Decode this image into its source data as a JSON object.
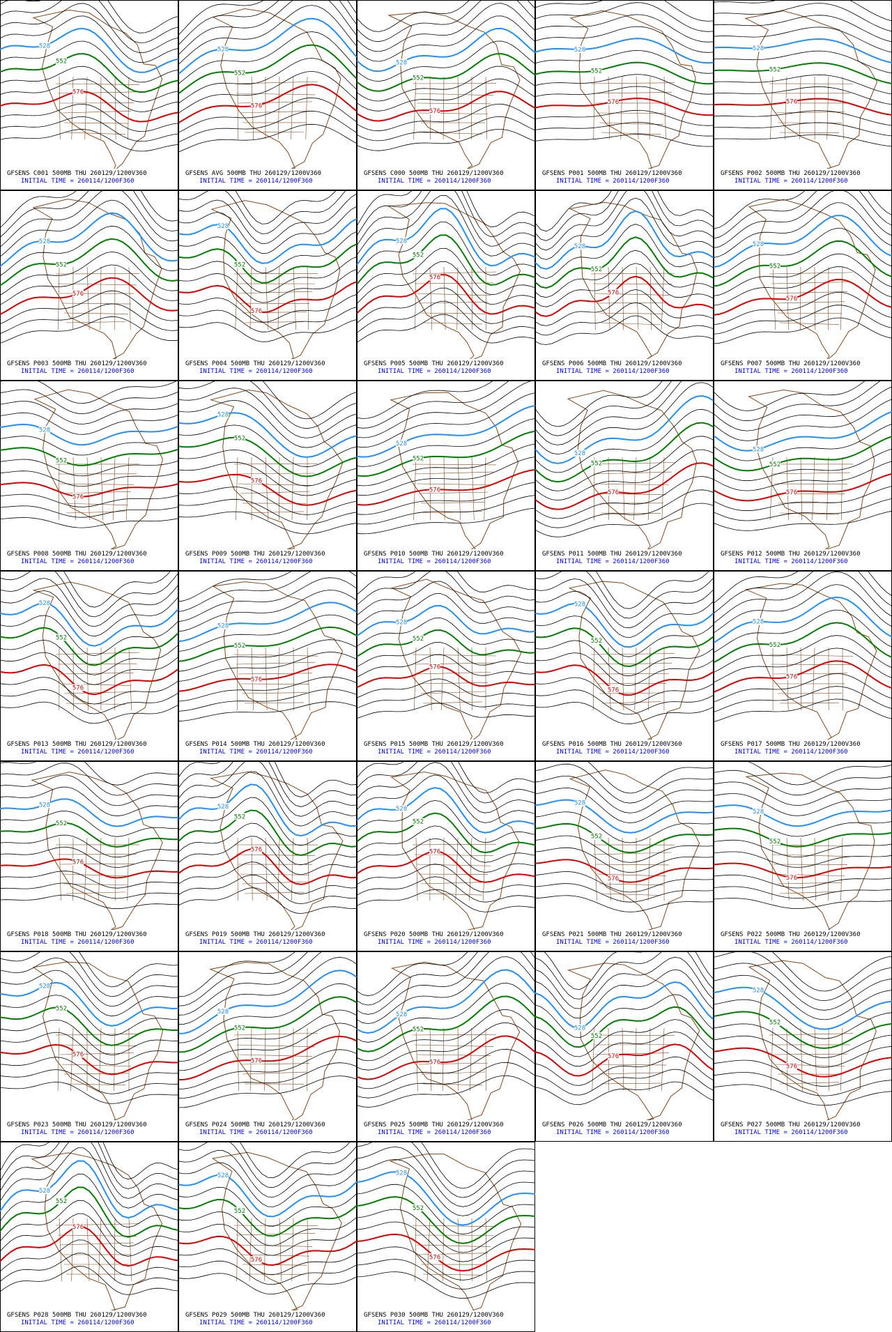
{
  "panels": [
    {
      "title": "GFSENS C001 500MB THU 260129/1200V360",
      "init": "INITIAL TIME = 260114/1200F360",
      "contour_labels": [
        "528",
        "552",
        "576"
      ]
    },
    {
      "title": "GFSENS AVG 500MB THU 260129/1200V360",
      "init": "INITIAL TIME = 260114/1200F360",
      "contour_labels": [
        "528",
        "552",
        "576"
      ]
    },
    {
      "title": "GFSENS C000 500MB THU 260129/1200V360",
      "init": "INITIAL TIME = 260114/1200F360",
      "contour_labels": [
        "528",
        "552",
        "576"
      ]
    },
    {
      "title": "GFSENS P001 500MB THU 260129/1200V360",
      "init": "INITIAL TIME = 260114/1200F360",
      "contour_labels": [
        "528",
        "552",
        "576"
      ]
    },
    {
      "title": "GFSENS P002 500MB THU 260129/1200V360",
      "init": "INITIAL TIME = 260114/1200F360",
      "contour_labels": [
        "528",
        "552",
        "576"
      ]
    },
    {
      "title": "GFSENS P003 500MB THU 260129/1200V360",
      "init": "INITIAL TIME = 260114/1200F360",
      "contour_labels": [
        "528",
        "552",
        "576"
      ]
    },
    {
      "title": "GFSENS P004 500MB THU 260129/1200V360",
      "init": "INITIAL TIME = 260114/1200F360",
      "contour_labels": [
        "528",
        "552",
        "576"
      ]
    },
    {
      "title": "GFSENS P005 500MB THU 260129/1200V360",
      "init": "INITIAL TIME = 260114/1200F360",
      "contour_labels": [
        "528",
        "552",
        "576"
      ]
    },
    {
      "title": "GFSENS P006 500MB THU 260129/1200V360",
      "init": "INITIAL TIME = 260114/1200F360",
      "contour_labels": [
        "528",
        "552",
        "576"
      ]
    },
    {
      "title": "GFSENS P007 500MB THU 260129/1200V360",
      "init": "INITIAL TIME = 260114/1200F360",
      "contour_labels": [
        "528",
        "552",
        "576"
      ]
    },
    {
      "title": "GFSENS P008 500MB THU 260129/1200V360",
      "init": "INITIAL TIME = 260114/1200F360",
      "contour_labels": [
        "528",
        "552",
        "576"
      ]
    },
    {
      "title": "GFSENS P009 500MB THU 260129/1200V360",
      "init": "INITIAL TIME = 260114/1200F360",
      "contour_labels": [
        "528",
        "552",
        "576"
      ]
    },
    {
      "title": "GFSENS P010 500MB THU 260129/1200V360",
      "init": "INITIAL TIME = 260114/1200F360",
      "contour_labels": [
        "528",
        "552",
        "576"
      ]
    },
    {
      "title": "GFSENS P011 500MB THU 260129/1200V360",
      "init": "INITIAL TIME = 260114/1200F360",
      "contour_labels": [
        "528",
        "552",
        "576"
      ]
    },
    {
      "title": "GFSENS P012 500MB THU 260129/1200V360",
      "init": "INITIAL TIME = 260114/1200F360",
      "contour_labels": [
        "528",
        "552",
        "576"
      ]
    },
    {
      "title": "GFSENS P013 500MB THU 260129/1200V360",
      "init": "INITIAL TIME = 260114/1200F360",
      "contour_labels": [
        "528",
        "552",
        "576"
      ]
    },
    {
      "title": "GFSENS P014 500MB THU 260129/1200V360",
      "init": "INITIAL TIME = 260114/1200F360",
      "contour_labels": [
        "528",
        "552",
        "576"
      ]
    },
    {
      "title": "GFSENS P015 500MB THU 260129/1200V360",
      "init": "INITIAL TIME = 260114/1200F360",
      "contour_labels": [
        "528",
        "552",
        "576"
      ]
    },
    {
      "title": "GFSENS P016 500MB THU 260129/1200V360",
      "init": "INITIAL TIME = 260114/1200F360",
      "contour_labels": [
        "528",
        "552",
        "576"
      ]
    },
    {
      "title": "GFSENS P017 500MB THU 260129/1200V360",
      "init": "INITIAL TIME = 260114/1200F360",
      "contour_labels": [
        "528",
        "552",
        "576"
      ]
    },
    {
      "title": "GFSENS P018 500MB THU 260129/1200V360",
      "init": "INITIAL TIME = 260114/1200F360",
      "contour_labels": [
        "528",
        "552",
        "576"
      ]
    },
    {
      "title": "GFSENS P019 500MB THU 260129/1200V360",
      "init": "INITIAL TIME = 260114/1200F360",
      "contour_labels": [
        "528",
        "552",
        "576"
      ]
    },
    {
      "title": "GFSENS P020 500MB THU 260129/1200V360",
      "init": "INITIAL TIME = 260114/1200F360",
      "contour_labels": [
        "528",
        "552",
        "576"
      ]
    },
    {
      "title": "GFSENS P021 500MB THU 260129/1200V360",
      "init": "INITIAL TIME = 260114/1200F360",
      "contour_labels": [
        "528",
        "552",
        "576"
      ]
    },
    {
      "title": "GFSENS P022 500MB THU 260129/1200V360",
      "init": "INITIAL TIME = 260114/1200F360",
      "contour_labels": [
        "528",
        "552",
        "576"
      ]
    },
    {
      "title": "GFSENS P023 500MB THU 260129/1200V360",
      "init": "INITIAL TIME = 260114/1200F360",
      "contour_labels": [
        "528",
        "552",
        "576"
      ]
    },
    {
      "title": "GFSENS P024 500MB THU 260129/1200V360",
      "init": "INITIAL TIME = 260114/1200F360",
      "contour_labels": [
        "528",
        "552",
        "576"
      ]
    },
    {
      "title": "GFSENS P025 500MB THU 260129/1200V360",
      "init": "INITIAL TIME = 260114/1200F360",
      "contour_labels": [
        "528",
        "552",
        "576"
      ]
    },
    {
      "title": "GFSENS P026 500MB THU 260129/1200V360",
      "init": "INITIAL TIME = 260114/1200F360",
      "contour_labels": [
        "528",
        "552",
        "576"
      ]
    },
    {
      "title": "GFSENS P027 500MB THU 260129/1200V360",
      "init": "INITIAL TIME = 260114/1200F360",
      "contour_labels": [
        "528",
        "552",
        "576"
      ]
    },
    {
      "title": "GFSENS P028 500MB THU 260129/1200V360",
      "init": "INITIAL TIME = 260114/1200F360",
      "contour_labels": [
        "528",
        "552",
        "576"
      ]
    },
    {
      "title": "GFSENS P029 500MB THU 260129/1200V360",
      "init": "INITIAL TIME = 260114/1200F360",
      "contour_labels": [
        "528",
        "552",
        "576"
      ]
    },
    {
      "title": "GFSENS P030 500MB THU 260129/1200V360",
      "init": "INITIAL TIME = 260114/1200F360",
      "contour_labels": [
        "528",
        "552",
        "576"
      ]
    }
  ]
}
